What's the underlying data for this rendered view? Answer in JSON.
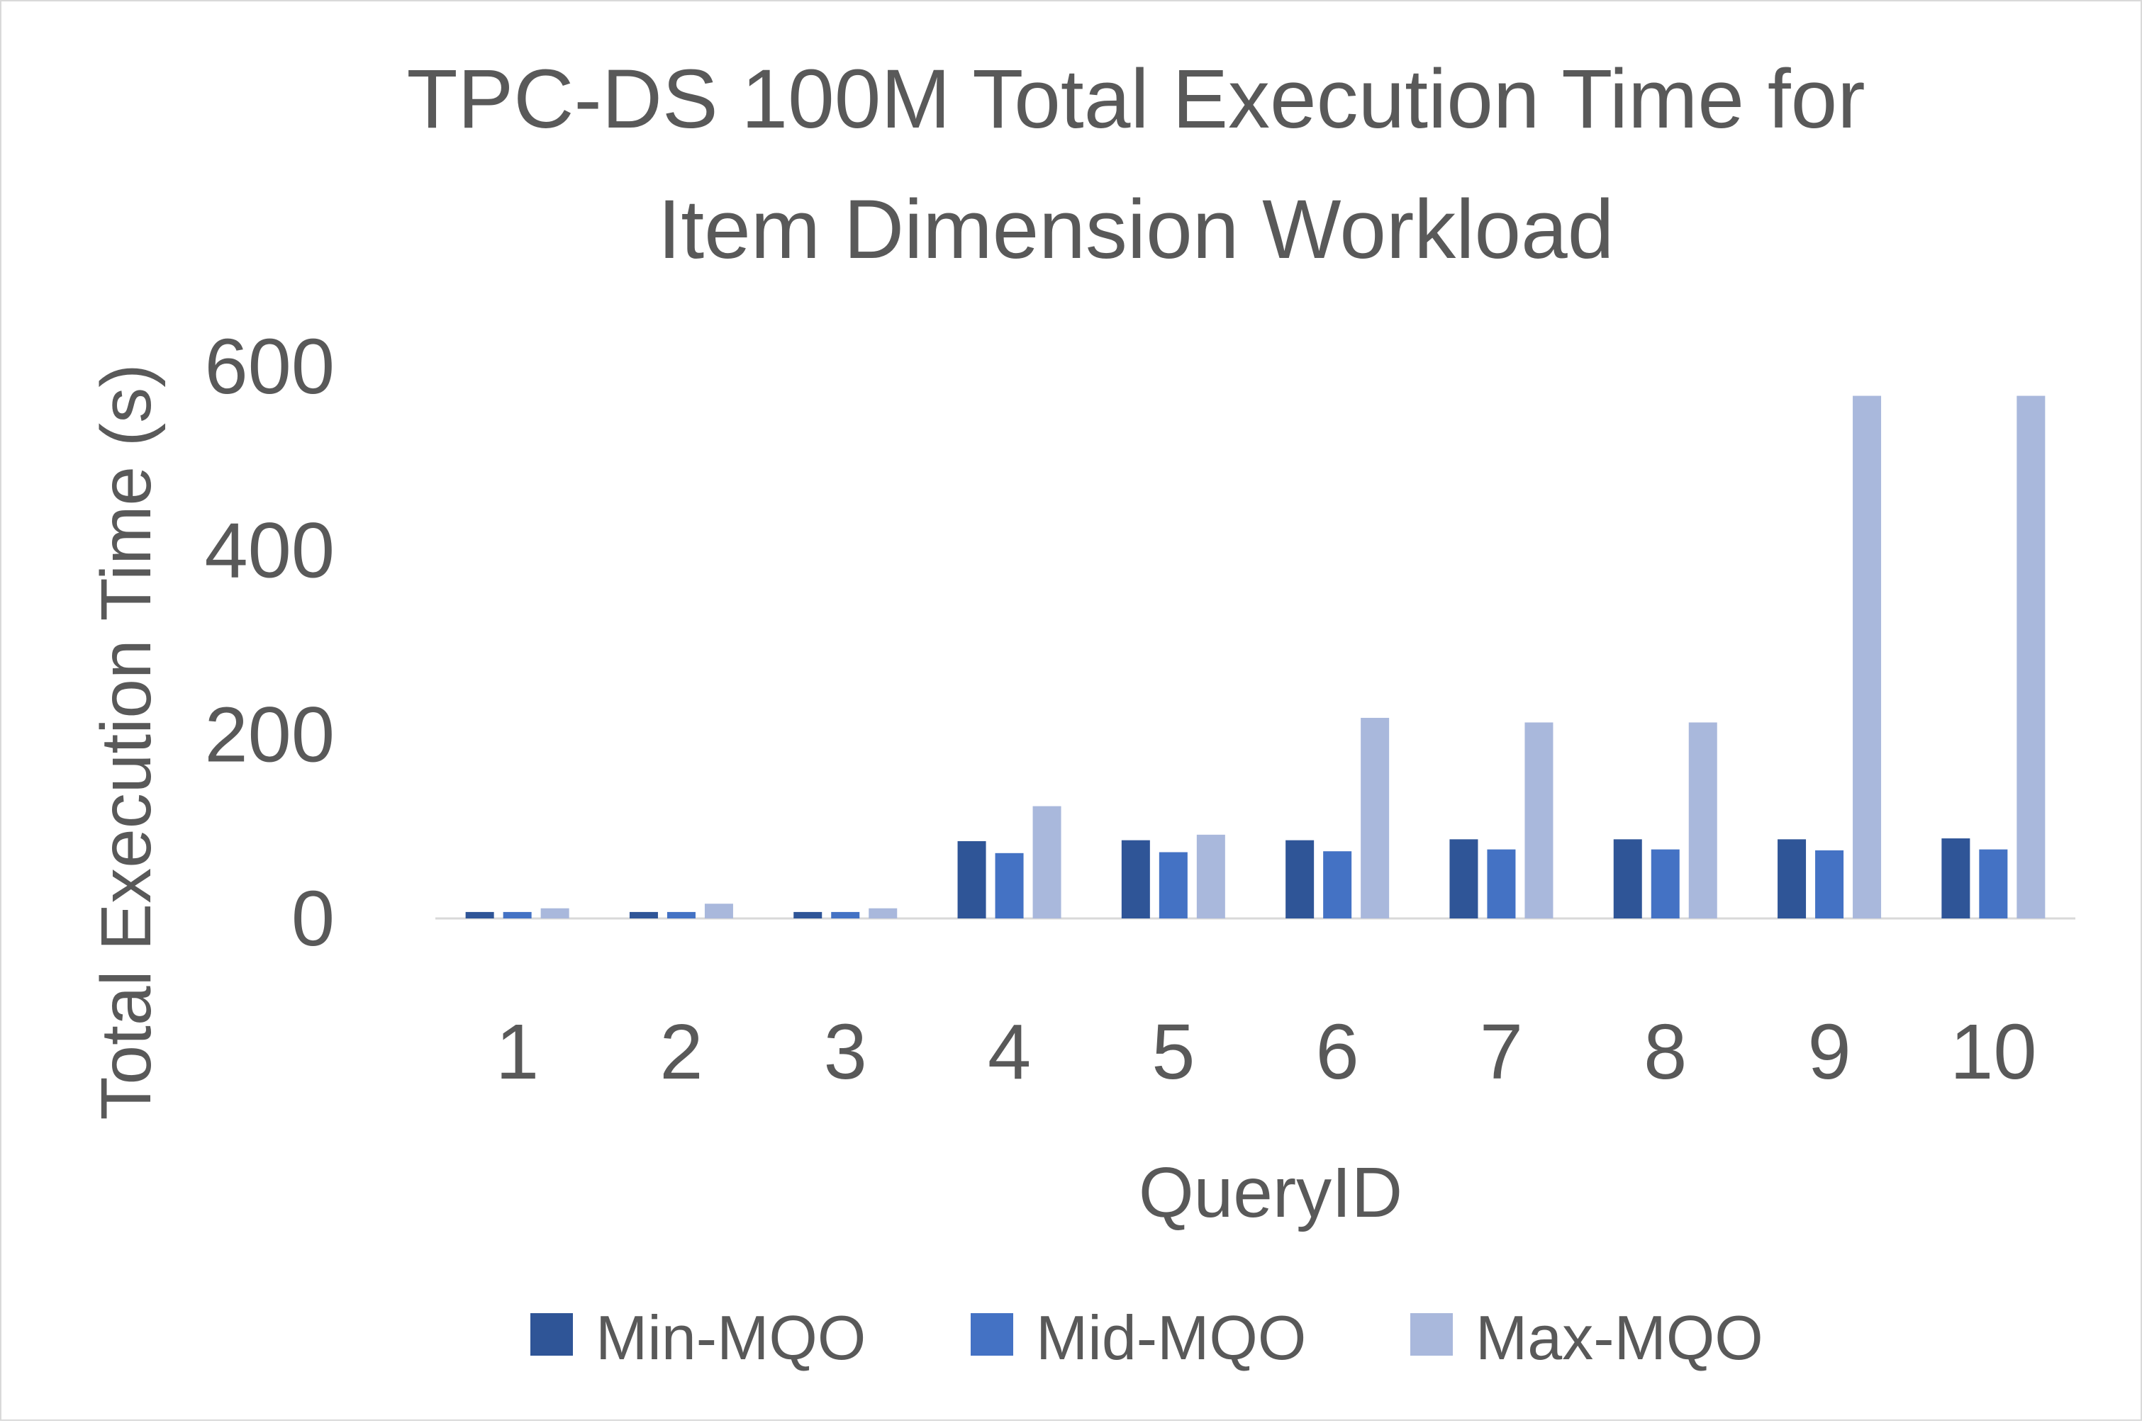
{
  "chart_data": {
    "type": "bar",
    "title_lines": [
      "TPC-DS 100M Total Execution Time for",
      "Item Dimension Workload"
    ],
    "xlabel": "QueryID",
    "ylabel": "Total Execution Time (s)",
    "ylim": [
      0,
      600
    ],
    "yticks": [
      0,
      200,
      400,
      600
    ],
    "grid": false,
    "legend_position": "bottom",
    "categories": [
      "1",
      "2",
      "3",
      "4",
      "5",
      "6",
      "7",
      "8",
      "9",
      "10"
    ],
    "series": [
      {
        "name": "Min-MQO",
        "color": "#2F5597",
        "values": [
          7,
          7,
          7,
          84,
          85,
          85,
          86,
          86,
          86,
          87
        ]
      },
      {
        "name": "Mid-MQO",
        "color": "#4472C4",
        "values": [
          7,
          7,
          7,
          71,
          72,
          73,
          75,
          75,
          74,
          75
        ]
      },
      {
        "name": "Max-MQO",
        "color": "#A9B8DC",
        "values": [
          11,
          16,
          11,
          122,
          91,
          218,
          213,
          213,
          568,
          568
        ]
      }
    ]
  }
}
